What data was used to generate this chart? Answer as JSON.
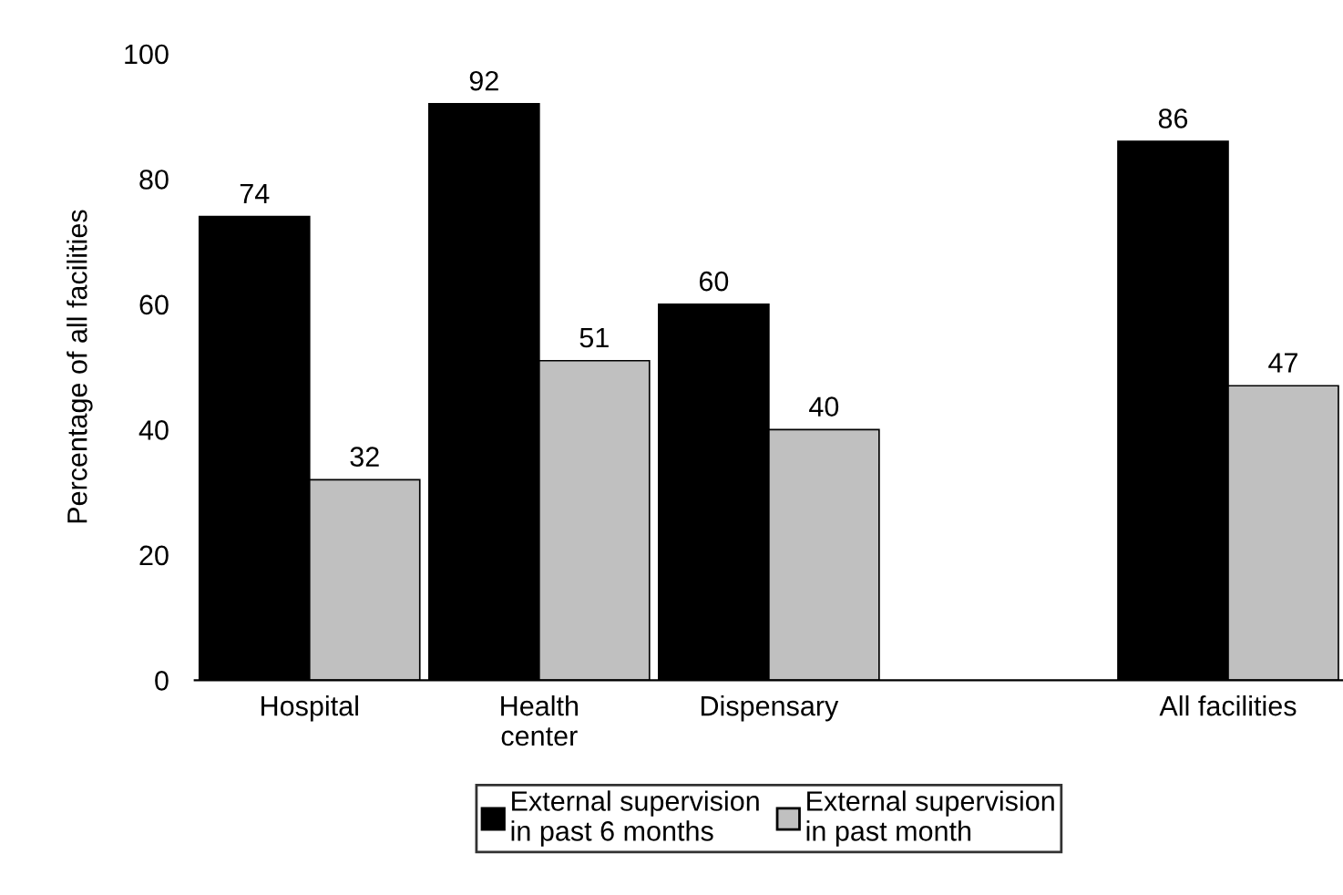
{
  "chart_data": {
    "type": "bar",
    "ylabel": "Percentage of all facilities",
    "categories": [
      "Hospital",
      "Health\ncenter",
      "Dispensary",
      null,
      "All facilities"
    ],
    "series": [
      {
        "name": "External supervision\nin past 6 months",
        "color": "#000000",
        "values": [
          74,
          92,
          60,
          null,
          86
        ]
      },
      {
        "name": "External supervision\nin past month",
        "color": "#c0c0c0",
        "values": [
          32,
          51,
          40,
          null,
          47
        ]
      }
    ],
    "ylim": [
      0,
      100
    ],
    "yticks": [
      0,
      20,
      40,
      60,
      80,
      100
    ],
    "data_labels": true,
    "grid": false,
    "legend": "bottom"
  }
}
